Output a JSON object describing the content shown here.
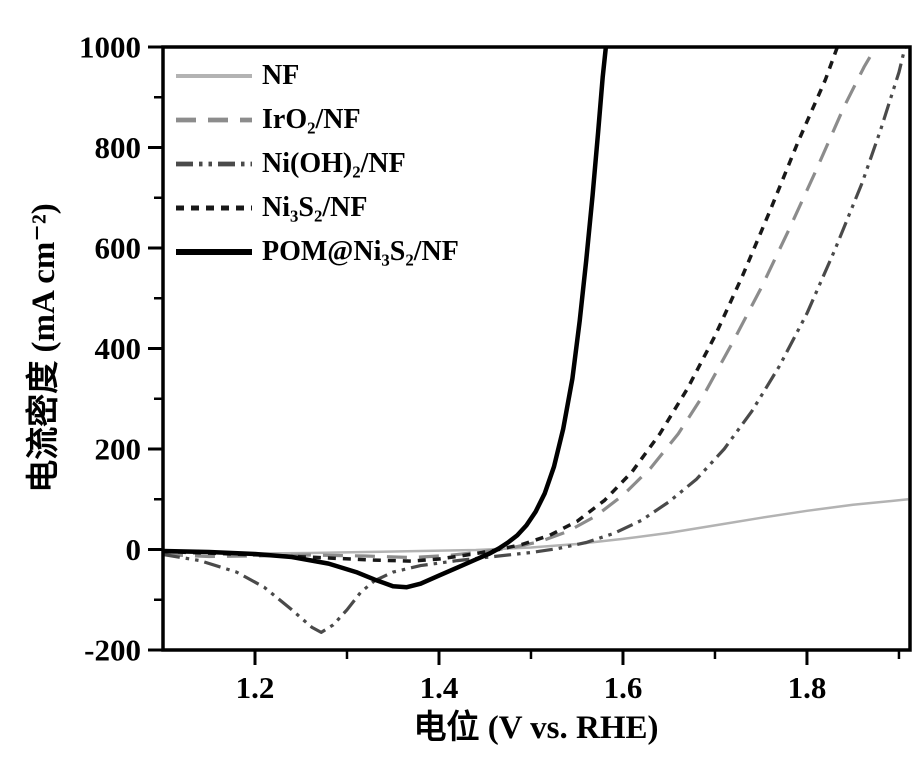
{
  "figure": {
    "background": "#ffffff",
    "axis_color": "#000000"
  },
  "chart_data": {
    "type": "line",
    "title": "",
    "xlabel": "电位 (V vs. RHE)",
    "ylabel": "电流密度 (mA cm⁻²)",
    "xlim": [
      1.1,
      1.912
    ],
    "ylim": [
      -200,
      1000
    ],
    "x_major_ticks": [
      1.2,
      1.4,
      1.6,
      1.8
    ],
    "x_minor_ticks": [
      1.3,
      1.5,
      1.7,
      1.9
    ],
    "y_major_ticks": [
      -200,
      0,
      200,
      400,
      600,
      800,
      1000
    ],
    "y_minor_ticks": [
      -100,
      100,
      300,
      500,
      700,
      900
    ],
    "grid": false,
    "legend_position": "top-left",
    "series": [
      {
        "id": "nf",
        "name": "NF",
        "color": "#b3b3b3",
        "dash": "",
        "width": 2.5,
        "points": [
          [
            1.1,
            -4
          ],
          [
            1.14,
            -7
          ],
          [
            1.2,
            -8
          ],
          [
            1.26,
            -7
          ],
          [
            1.32,
            -5
          ],
          [
            1.38,
            -3
          ],
          [
            1.44,
            -1
          ],
          [
            1.5,
            4
          ],
          [
            1.55,
            11
          ],
          [
            1.6,
            21
          ],
          [
            1.65,
            33
          ],
          [
            1.7,
            48
          ],
          [
            1.75,
            63
          ],
          [
            1.8,
            77
          ],
          [
            1.85,
            89
          ],
          [
            1.91,
            100
          ]
        ]
      },
      {
        "id": "iro2-nf",
        "name": "IrO₂/NF",
        "color": "#8c8c8c",
        "dash": "20,12",
        "width": 3.2,
        "points": [
          [
            1.1,
            -10
          ],
          [
            1.15,
            -14
          ],
          [
            1.2,
            -13
          ],
          [
            1.26,
            -11
          ],
          [
            1.32,
            -13
          ],
          [
            1.37,
            -16
          ],
          [
            1.41,
            -12
          ],
          [
            1.45,
            -4
          ],
          [
            1.48,
            4
          ],
          [
            1.51,
            16
          ],
          [
            1.54,
            36
          ],
          [
            1.57,
            66
          ],
          [
            1.6,
            108
          ],
          [
            1.63,
            162
          ],
          [
            1.66,
            230
          ],
          [
            1.69,
            315
          ],
          [
            1.72,
            415
          ],
          [
            1.75,
            520
          ],
          [
            1.78,
            635
          ],
          [
            1.81,
            755
          ],
          [
            1.84,
            880
          ],
          [
            1.862,
            960
          ],
          [
            1.878,
            1010
          ]
        ]
      },
      {
        "id": "nioh2-nf",
        "name": "Ni(OH)₂/NF",
        "color": "#4a4a4a",
        "dash": "17,6,3.5,6,3.5,6",
        "width": 3.2,
        "points": [
          [
            1.1,
            -10
          ],
          [
            1.14,
            -22
          ],
          [
            1.18,
            -45
          ],
          [
            1.21,
            -75
          ],
          [
            1.24,
            -120
          ],
          [
            1.262,
            -155
          ],
          [
            1.272,
            -165
          ],
          [
            1.285,
            -150
          ],
          [
            1.3,
            -120
          ],
          [
            1.315,
            -85
          ],
          [
            1.33,
            -62
          ],
          [
            1.35,
            -45
          ],
          [
            1.38,
            -32
          ],
          [
            1.42,
            -22
          ],
          [
            1.46,
            -14
          ],
          [
            1.5,
            -6
          ],
          [
            1.53,
            2
          ],
          [
            1.56,
            14
          ],
          [
            1.59,
            32
          ],
          [
            1.62,
            58
          ],
          [
            1.65,
            95
          ],
          [
            1.68,
            140
          ],
          [
            1.71,
            200
          ],
          [
            1.74,
            275
          ],
          [
            1.77,
            365
          ],
          [
            1.8,
            470
          ],
          [
            1.83,
            595
          ],
          [
            1.86,
            730
          ],
          [
            1.88,
            835
          ],
          [
            1.9,
            950
          ],
          [
            1.908,
            1010
          ]
        ]
      },
      {
        "id": "ni3s2-nf",
        "name": "Ni₃S₂/NF",
        "color": "#181818",
        "dash": "8,7",
        "width": 3.5,
        "points": [
          [
            1.1,
            -4
          ],
          [
            1.16,
            -8
          ],
          [
            1.22,
            -12
          ],
          [
            1.28,
            -17
          ],
          [
            1.33,
            -21
          ],
          [
            1.37,
            -23
          ],
          [
            1.4,
            -19
          ],
          [
            1.43,
            -11
          ],
          [
            1.46,
            -2
          ],
          [
            1.49,
            10
          ],
          [
            1.52,
            28
          ],
          [
            1.55,
            56
          ],
          [
            1.58,
            98
          ],
          [
            1.61,
            155
          ],
          [
            1.64,
            230
          ],
          [
            1.67,
            320
          ],
          [
            1.7,
            425
          ],
          [
            1.73,
            545
          ],
          [
            1.76,
            675
          ],
          [
            1.79,
            810
          ],
          [
            1.82,
            935
          ],
          [
            1.835,
            1010
          ]
        ]
      },
      {
        "id": "pom-ni3s2-nf",
        "name": "POM@Ni₃S₂/NF",
        "color": "#000000",
        "dash": "",
        "width": 4.5,
        "points": [
          [
            1.1,
            -3
          ],
          [
            1.15,
            -5
          ],
          [
            1.2,
            -9
          ],
          [
            1.24,
            -15
          ],
          [
            1.28,
            -28
          ],
          [
            1.31,
            -45
          ],
          [
            1.33,
            -60
          ],
          [
            1.35,
            -73
          ],
          [
            1.365,
            -75
          ],
          [
            1.38,
            -68
          ],
          [
            1.4,
            -52
          ],
          [
            1.42,
            -36
          ],
          [
            1.44,
            -20
          ],
          [
            1.455,
            -8
          ],
          [
            1.465,
            2
          ],
          [
            1.475,
            14
          ],
          [
            1.485,
            28
          ],
          [
            1.495,
            48
          ],
          [
            1.505,
            75
          ],
          [
            1.515,
            112
          ],
          [
            1.525,
            165
          ],
          [
            1.535,
            240
          ],
          [
            1.545,
            340
          ],
          [
            1.553,
            455
          ],
          [
            1.56,
            575
          ],
          [
            1.567,
            705
          ],
          [
            1.573,
            830
          ],
          [
            1.578,
            940
          ],
          [
            1.582,
            1010
          ]
        ]
      }
    ]
  }
}
